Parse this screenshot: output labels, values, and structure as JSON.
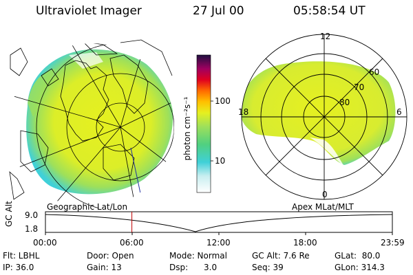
{
  "header": {
    "title": "Ultraviolet Imager",
    "date": "27 Jul 00",
    "time": "05:58:54 UT"
  },
  "colorbar": {
    "unit_label": "photon cm⁻²s⁻¹",
    "ticks": [
      "100",
      "10"
    ]
  },
  "left_panel": {
    "caption": "Geographic Lat/Lon"
  },
  "right_panel": {
    "caption": "Apex MLat/MLT",
    "mlt_labels": [
      "12",
      "18",
      "6",
      "0"
    ],
    "lat_labels": [
      "60",
      "70",
      "80"
    ]
  },
  "timeline": {
    "ylabel": "GC Alt",
    "yticks": [
      "9.0",
      "1.8"
    ],
    "xticks": [
      "00:00",
      "06:00",
      "12:00",
      "18:00",
      "23:59"
    ],
    "marker_time_hours": 5.98
  },
  "info": {
    "col1": [
      "Flt: LBHL",
      "IP: 36.0"
    ],
    "col2": [
      "Door: Open",
      "Gain: 13"
    ],
    "col3": [
      "Mode: Normal",
      "Dsp:      3.0"
    ],
    "col4": [
      "GC Alt: 7.6 Re",
      "Seq: 39"
    ],
    "col5": [
      "GLat:  80.0",
      "GLon: 314.3"
    ]
  },
  "colors": {
    "aurora_yellow": "#e6f020",
    "aurora_green": "#9ee05a",
    "aurora_cyan": "#40d0d8",
    "marker_red": "#c00000"
  }
}
